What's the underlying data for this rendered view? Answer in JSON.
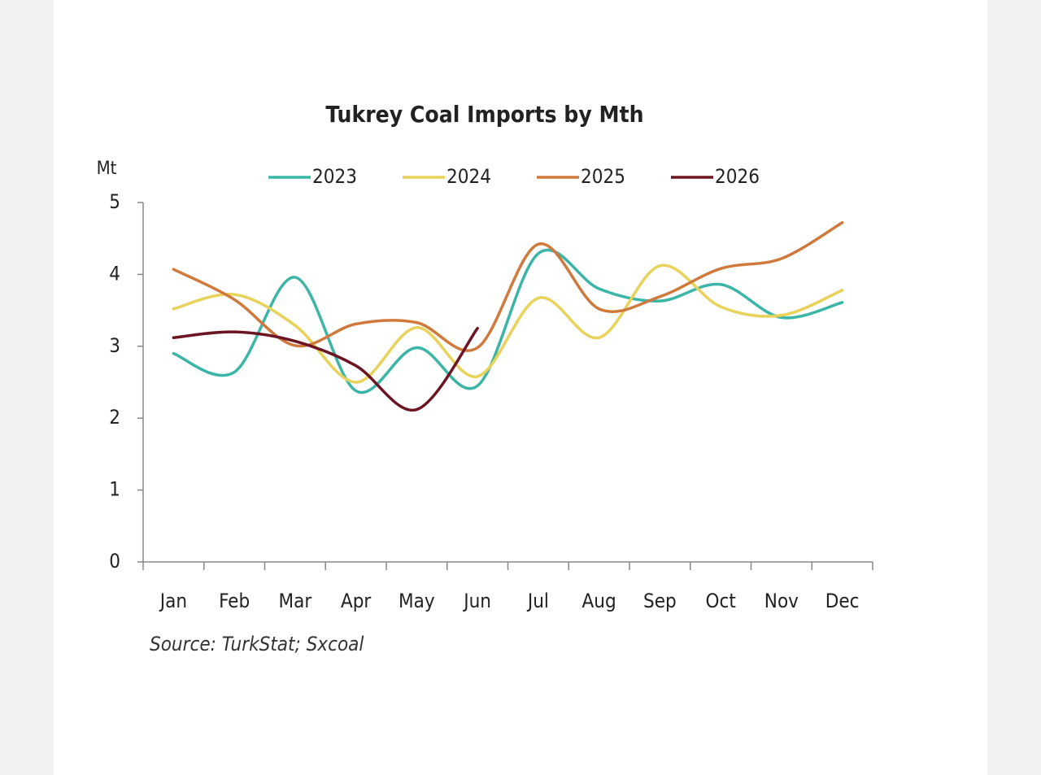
{
  "chart_data": {
    "type": "line",
    "title": "Tukrey Coal Imports by Mth",
    "y_label": "Mt",
    "source": "Source: TurkStat; Sxcoal",
    "categories": [
      "Jan",
      "Feb",
      "Mar",
      "Apr",
      "May",
      "Jun",
      "Jul",
      "Aug",
      "Sep",
      "Oct",
      "Nov",
      "Dec"
    ],
    "series": [
      {
        "name": "2023",
        "color": "#3bb5a6",
        "values": [
          2.9,
          2.64,
          3.96,
          2.38,
          2.98,
          2.45,
          4.29,
          3.8,
          3.63,
          3.86,
          3.4,
          3.61
        ]
      },
      {
        "name": "2024",
        "color": "#e8d25a",
        "values": [
          3.52,
          3.72,
          3.29,
          2.5,
          3.26,
          2.58,
          3.67,
          3.12,
          4.12,
          3.55,
          3.43,
          3.78
        ]
      },
      {
        "name": "2025",
        "color": "#cf7a3c",
        "values": [
          4.07,
          3.65,
          3.01,
          3.31,
          3.33,
          2.98,
          4.42,
          3.52,
          3.69,
          4.08,
          4.22,
          4.72
        ]
      },
      {
        "name": "2026",
        "color": "#6b1422",
        "values": [
          3.12,
          3.2,
          3.07,
          2.73,
          2.12,
          3.25,
          null,
          null,
          null,
          null,
          null,
          null
        ]
      }
    ],
    "ylim": [
      0,
      5
    ],
    "yticks": [
      0,
      1,
      2,
      3,
      4,
      5
    ],
    "grid": false,
    "legend": "top"
  }
}
